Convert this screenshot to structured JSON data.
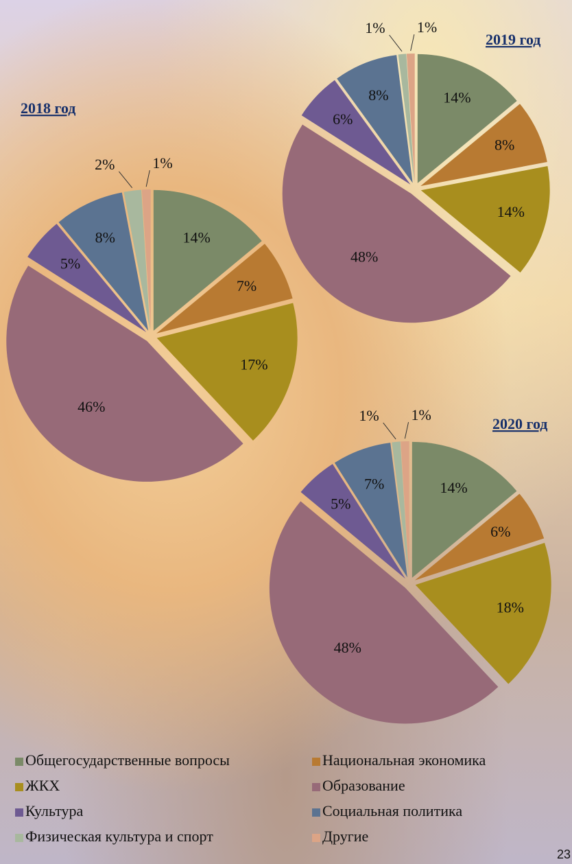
{
  "legend": {
    "categories": [
      "Общегосударственные вопросы",
      "Национальная экономика",
      "ЖКХ",
      "Образование",
      "Культура",
      "Социальная политика",
      "Физическая культура и спорт",
      "Другие"
    ],
    "colors": [
      "#7b8a68",
      "#b87a32",
      "#a88e1e",
      "#976a78",
      "#6e5a92",
      "#5b7391",
      "#a8b89e",
      "#dca486"
    ]
  },
  "page_number": "23",
  "chart_data": [
    {
      "type": "pie",
      "title": "2018 год",
      "values": [
        14,
        7,
        17,
        46,
        5,
        8,
        2,
        1
      ],
      "value_labels": [
        "14%",
        "7%",
        "17%",
        "46%",
        "5%",
        "8%",
        "2%",
        "1%"
      ]
    },
    {
      "type": "pie",
      "title": "2019 год",
      "values": [
        14,
        8,
        14,
        48,
        6,
        8,
        1,
        1
      ],
      "value_labels": [
        "14%",
        "8%",
        "14%",
        "48%",
        "6%",
        "8%",
        "1%",
        "1%"
      ]
    },
    {
      "type": "pie",
      "title": "2020 год",
      "values": [
        14,
        6,
        18,
        48,
        5,
        7,
        1,
        1
      ],
      "value_labels": [
        "14%",
        "6%",
        "18%",
        "48%",
        "5%",
        "7%",
        "1%",
        "1%"
      ]
    }
  ]
}
